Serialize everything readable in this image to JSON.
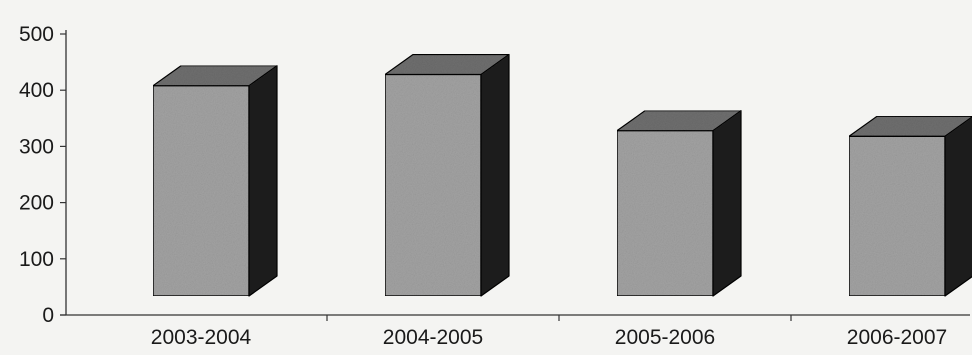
{
  "chart_data": {
    "type": "bar",
    "categories": [
      "2003-2004",
      "2004-2005",
      "2005-2006",
      "2006-2007"
    ],
    "values": [
      408,
      428,
      328,
      318
    ],
    "title": "",
    "xlabel": "",
    "ylabel": "",
    "ylim": [
      0,
      500
    ],
    "yticks": [
      0,
      100,
      200,
      300,
      400,
      500
    ],
    "grid": false,
    "legend": "none",
    "style": "3d",
    "colors": {
      "bar_front": "#a3a3a3",
      "bar_top": "#6f6f6f",
      "bar_side": "#1c1c1c",
      "axis": "#333333",
      "background": "#f4f4f2"
    }
  }
}
